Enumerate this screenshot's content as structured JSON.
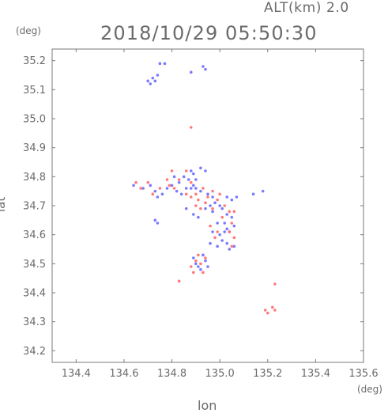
{
  "header": {
    "alt_label": "ALT(km) 2.0",
    "timestamp": "2018/10/29 05:50:30"
  },
  "chart_data": {
    "type": "scatter",
    "title": "2018/10/29 05:50:30",
    "xlabel": "lon",
    "ylabel": "lat",
    "x_unit": "(deg)",
    "y_unit": "(deg)",
    "xlim": [
      134.3,
      135.6
    ],
    "ylim": [
      34.16,
      35.24
    ],
    "xticks": [
      134.4,
      134.6,
      134.8,
      135.0,
      135.2,
      135.4,
      135.6
    ],
    "yticks": [
      34.2,
      34.3,
      34.4,
      34.5,
      34.6,
      34.7,
      34.8,
      34.9,
      35.0,
      35.1,
      35.2
    ],
    "grid": false,
    "legend": "none",
    "colors": {
      "blue": "#6b6bff",
      "red": "#ff6b6b",
      "axis": "#7a7a7a",
      "text": "#6b6b6b"
    },
    "series": [
      {
        "color": "blue",
        "points": [
          [
            134.7,
            35.13
          ],
          [
            134.72,
            35.14
          ],
          [
            134.73,
            35.13
          ],
          [
            134.74,
            35.15
          ],
          [
            134.71,
            35.12
          ],
          [
            134.75,
            35.19
          ],
          [
            134.77,
            35.19
          ],
          [
            134.88,
            35.16
          ],
          [
            134.93,
            35.18
          ],
          [
            134.94,
            35.17
          ],
          [
            134.88,
            34.82
          ],
          [
            134.89,
            34.81
          ],
          [
            134.9,
            34.79
          ],
          [
            134.92,
            34.83
          ],
          [
            134.94,
            34.82
          ],
          [
            134.86,
            34.76
          ],
          [
            134.88,
            34.76
          ],
          [
            134.9,
            34.76
          ],
          [
            134.92,
            34.75
          ],
          [
            134.95,
            34.74
          ],
          [
            134.97,
            34.73
          ],
          [
            134.98,
            34.71
          ],
          [
            135.0,
            34.7
          ],
          [
            135.01,
            34.69
          ],
          [
            135.03,
            34.67
          ],
          [
            135.05,
            34.66
          ],
          [
            135.06,
            34.63
          ],
          [
            135.04,
            34.61
          ],
          [
            134.97,
            34.61
          ],
          [
            135.0,
            34.6
          ],
          [
            135.02,
            34.61
          ],
          [
            134.96,
            34.57
          ],
          [
            134.99,
            34.56
          ],
          [
            135.01,
            34.58
          ],
          [
            135.03,
            34.57
          ],
          [
            134.64,
            34.77
          ],
          [
            134.68,
            34.76
          ],
          [
            134.71,
            34.77
          ],
          [
            134.73,
            34.75
          ],
          [
            134.74,
            34.73
          ],
          [
            134.76,
            34.74
          ],
          [
            134.78,
            34.76
          ],
          [
            134.8,
            34.77
          ],
          [
            134.82,
            34.75
          ],
          [
            134.84,
            34.74
          ],
          [
            134.96,
            34.7
          ],
          [
            134.97,
            34.68
          ],
          [
            134.94,
            34.69
          ],
          [
            135.03,
            34.73
          ],
          [
            135.05,
            34.72
          ],
          [
            135.07,
            34.73
          ],
          [
            135.14,
            34.74
          ],
          [
            135.18,
            34.75
          ],
          [
            134.89,
            34.52
          ],
          [
            134.9,
            34.5
          ],
          [
            134.91,
            34.49
          ],
          [
            134.93,
            34.53
          ],
          [
            134.94,
            34.51
          ],
          [
            134.92,
            34.48
          ],
          [
            134.95,
            34.49
          ],
          [
            134.89,
            34.67
          ],
          [
            134.91,
            34.66
          ],
          [
            134.86,
            34.69
          ],
          [
            134.73,
            34.65
          ],
          [
            134.74,
            34.64
          ],
          [
            135.04,
            34.55
          ],
          [
            135.06,
            34.56
          ],
          [
            134.99,
            34.64
          ],
          [
            135.02,
            34.64
          ],
          [
            135.03,
            34.62
          ],
          [
            134.81,
            34.8
          ],
          [
            134.83,
            34.78
          ],
          [
            134.85,
            34.8
          ],
          [
            134.87,
            34.79
          ],
          [
            134.89,
            34.77
          ]
        ]
      },
      {
        "color": "red",
        "points": [
          [
            134.88,
            34.97
          ],
          [
            134.65,
            34.78
          ],
          [
            134.67,
            34.76
          ],
          [
            134.7,
            34.78
          ],
          [
            134.72,
            34.74
          ],
          [
            134.75,
            34.76
          ],
          [
            134.79,
            34.77
          ],
          [
            134.81,
            34.76
          ],
          [
            134.83,
            34.79
          ],
          [
            134.86,
            34.82
          ],
          [
            134.88,
            34.78
          ],
          [
            134.9,
            34.74
          ],
          [
            134.91,
            34.72
          ],
          [
            134.93,
            34.76
          ],
          [
            134.95,
            34.73
          ],
          [
            134.97,
            34.75
          ],
          [
            134.99,
            34.72
          ],
          [
            135.0,
            34.74
          ],
          [
            135.02,
            34.7
          ],
          [
            135.04,
            34.68
          ],
          [
            135.06,
            34.68
          ],
          [
            135.05,
            34.64
          ],
          [
            135.04,
            34.61
          ],
          [
            135.06,
            34.59
          ],
          [
            135.05,
            34.56
          ],
          [
            134.98,
            34.59
          ],
          [
            134.99,
            34.61
          ],
          [
            134.96,
            34.63
          ],
          [
            134.9,
            34.7
          ],
          [
            134.92,
            34.69
          ],
          [
            134.88,
            34.49
          ],
          [
            134.89,
            34.47
          ],
          [
            134.9,
            34.51
          ],
          [
            134.92,
            34.5
          ],
          [
            134.93,
            34.47
          ],
          [
            134.94,
            34.52
          ],
          [
            134.91,
            34.53
          ],
          [
            134.83,
            34.44
          ],
          [
            135.23,
            34.43
          ],
          [
            135.19,
            34.34
          ],
          [
            135.2,
            34.33
          ],
          [
            135.22,
            34.35
          ],
          [
            135.23,
            34.34
          ],
          [
            134.78,
            34.79
          ],
          [
            134.8,
            34.82
          ],
          [
            134.86,
            34.74
          ],
          [
            134.88,
            34.73
          ],
          [
            134.94,
            34.71
          ],
          [
            134.97,
            34.69
          ],
          [
            135.01,
            34.66
          ]
        ]
      }
    ]
  }
}
